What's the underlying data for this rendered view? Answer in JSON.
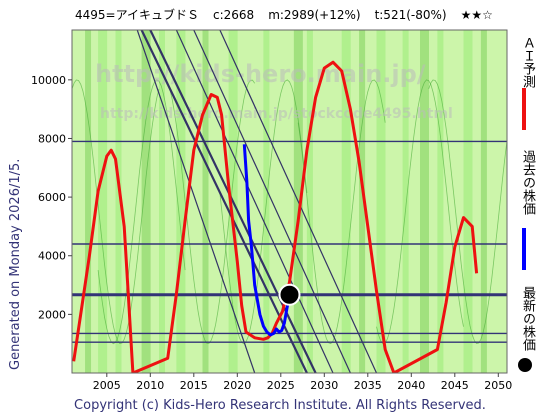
{
  "header": {
    "code_name": "4495=アイキュブドＳ",
    "current": "c:2668",
    "ai_max": "m:2989(+12%)",
    "ai_target": "t:521(-80%)",
    "rating": "★★☆"
  },
  "watermark": {
    "line1": "http://kids-hero.main.jp/",
    "line2": "http://kids-hero.main.jp/stockcode4495.html"
  },
  "generated_text": "Generated on Monday 2026/1/5.",
  "footer_text": "Copyright (c) Kids-Hero Research Institute. All Rights Reserved.",
  "legend": {
    "ai": "ＡＩ予測",
    "past": "過去の株価",
    "latest": "最新の株価"
  },
  "colors": {
    "ai_line": "#ee1111",
    "past_line": "#0000ff",
    "latest_marker": "#000000",
    "hline": "#333377",
    "trend": "#333366",
    "band_light": "#aaee88",
    "band_dark": "#99dd77"
  },
  "chart_data": {
    "type": "line",
    "xlim": [
      2001,
      2051
    ],
    "ylim": [
      0,
      11700
    ],
    "x_ticks": [
      2005,
      2010,
      2015,
      2020,
      2025,
      2030,
      2035,
      2040,
      2045,
      2050
    ],
    "y_ticks": [
      2000,
      4000,
      6000,
      8000,
      10000
    ],
    "grid": false,
    "horizontal_levels": [
      2668,
      7900,
      4400,
      1350,
      1050
    ],
    "series": [
      {
        "name": "ＡＩ予測",
        "x": [
          2001.2,
          2002,
          2003,
          2004,
          2005,
          2005.5,
          2006,
          2007,
          2007.5,
          2008,
          2012,
          2013,
          2014,
          2015,
          2016,
          2017,
          2017.7,
          2018.2,
          2019,
          2020,
          2020.5,
          2021,
          2022,
          2023,
          2023.5,
          2024,
          2024.5,
          2025.2,
          2026,
          2027,
          2028,
          2029,
          2030,
          2031,
          2032,
          2033,
          2034,
          2035,
          2036,
          2037,
          2038,
          2043,
          2044,
          2045,
          2046,
          2047,
          2047.5
        ],
        "values": [
          400,
          2000,
          4000,
          6200,
          7400,
          7600,
          7300,
          5000,
          2500,
          0,
          500,
          2700,
          5200,
          7600,
          8800,
          9500,
          9400,
          8800,
          6400,
          3800,
          2300,
          1400,
          1200,
          1150,
          1200,
          1350,
          1700,
          2100,
          3100,
          5200,
          7600,
          9400,
          10400,
          10600,
          10300,
          9000,
          7200,
          5000,
          2800,
          800,
          0,
          800,
          2400,
          4300,
          5300,
          5000,
          3400
        ]
      },
      {
        "name": "過去の株価",
        "x": [
          2020.8,
          2021.1,
          2021.3,
          2021.6,
          2021.8,
          2022.0,
          2022.3,
          2022.6,
          2023.0,
          2023.4,
          2023.8,
          2024.2,
          2024.5,
          2024.8,
          2025.1,
          2025.4,
          2025.7,
          2026.0
        ],
        "values": [
          7800,
          6500,
          5200,
          4400,
          3700,
          3000,
          2500,
          2000,
          1600,
          1400,
          1300,
          1350,
          1500,
          1400,
          1450,
          1700,
          2200,
          2668
        ]
      }
    ],
    "latest_point": {
      "x": 2026.0,
      "y": 2668
    },
    "trend_lines": [
      {
        "x1": 2009,
        "y1": 11700,
        "x2": 2028,
        "y2": 0
      },
      {
        "x1": 2010,
        "y1": 11700,
        "x2": 2029,
        "y2": 0
      },
      {
        "x1": 2013,
        "y1": 11700,
        "x2": 2031,
        "y2": 0
      },
      {
        "x1": 2015,
        "y1": 11700,
        "x2": 2033,
        "y2": 0
      },
      {
        "x1": 2018,
        "y1": 11700,
        "x2": 2036,
        "y2": 0
      },
      {
        "x1": 2008.5,
        "y1": 11700,
        "x2": 2022,
        "y2": 0
      }
    ]
  }
}
